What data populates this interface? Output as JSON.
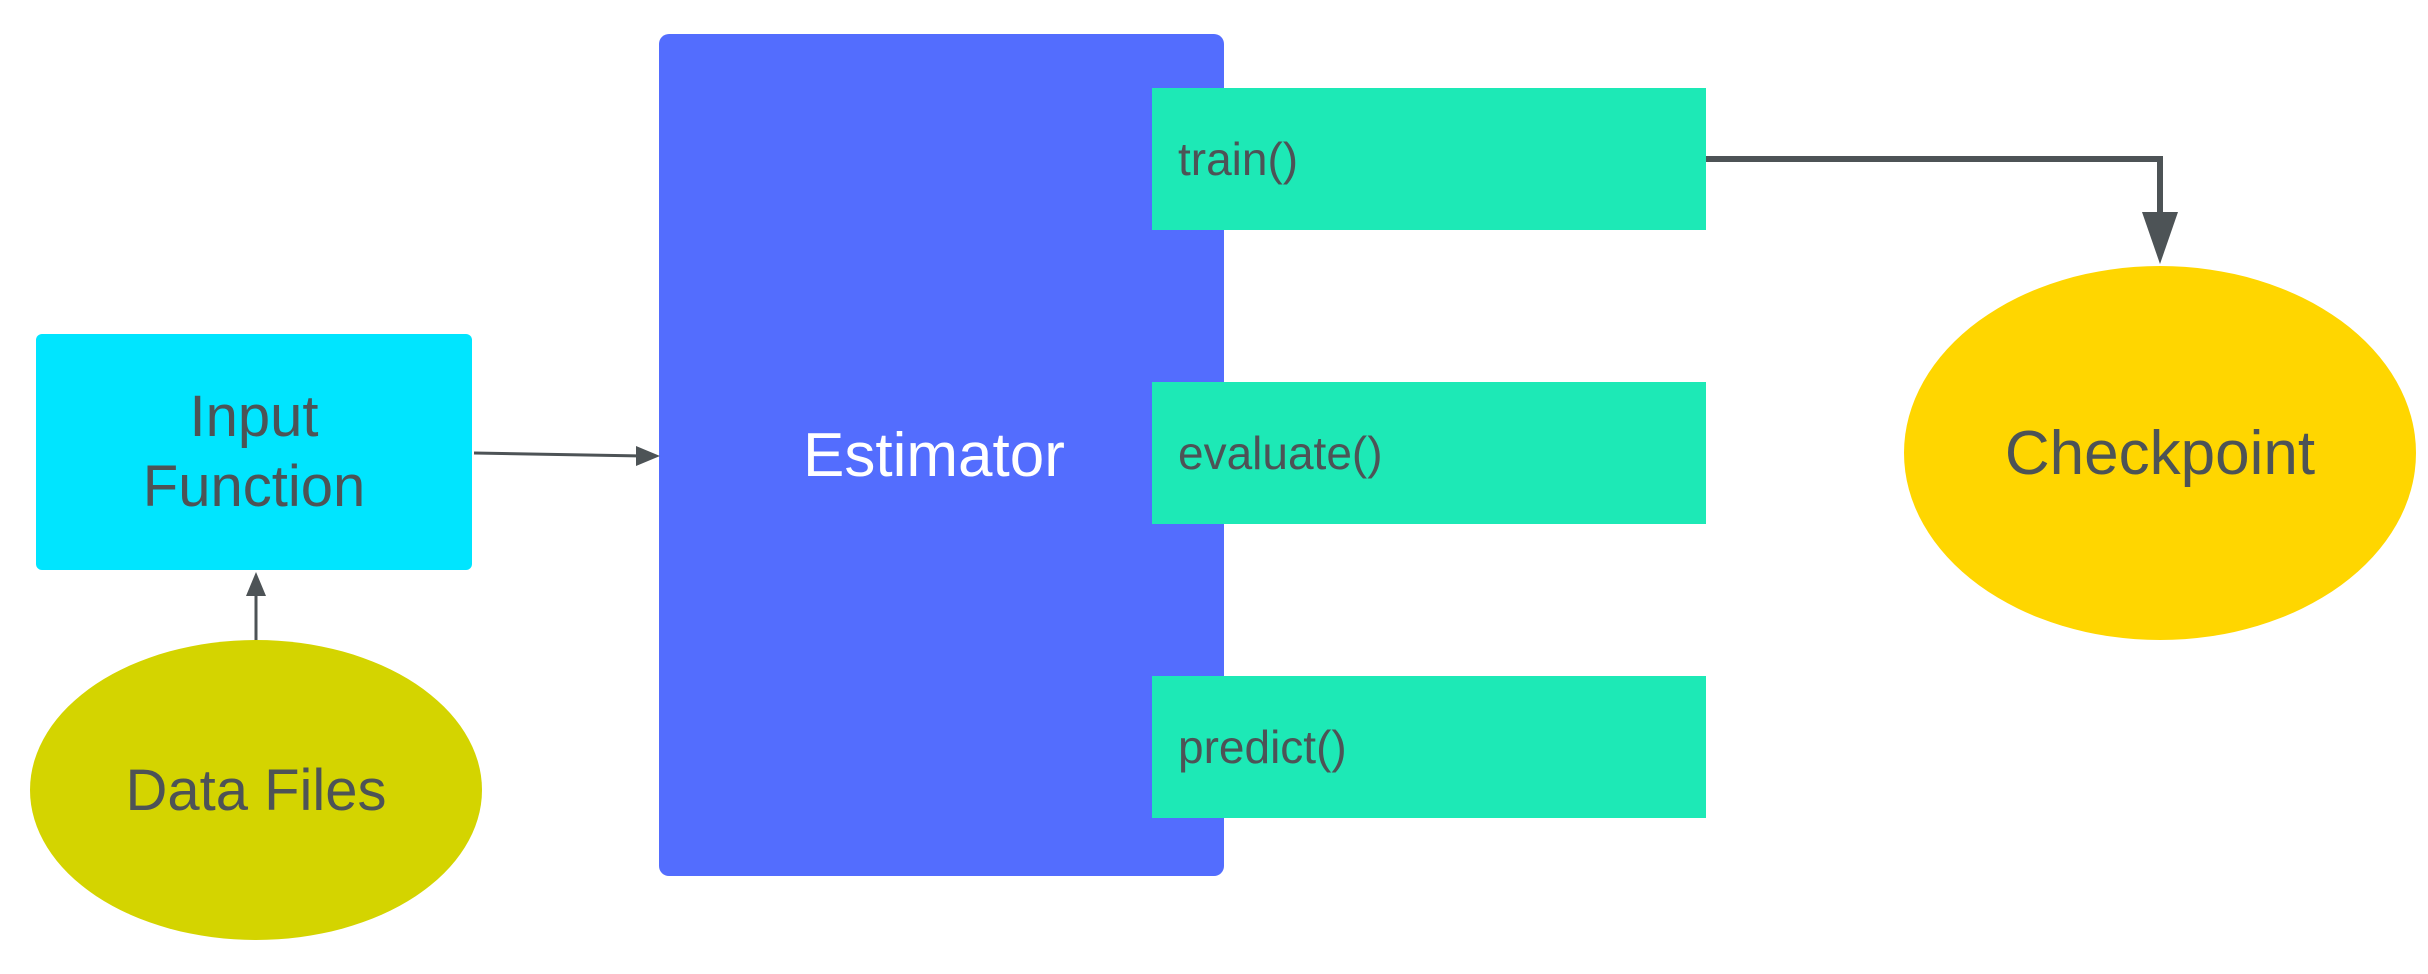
{
  "nodes": {
    "input_function": {
      "label": "Input\nFunction",
      "color": "#00e5ff"
    },
    "data_files": {
      "label": "Data Files",
      "color": "#d4d400"
    },
    "estimator": {
      "label": "Estimator",
      "color": "#536dfe"
    },
    "checkpoint": {
      "label": "Checkpoint",
      "color": "#ffd600"
    }
  },
  "methods": [
    {
      "label": "train()"
    },
    {
      "label": "evaluate()"
    },
    {
      "label": "predict()"
    }
  ],
  "colors": {
    "method_fill": "#1de9b6",
    "connector": "#4d5356",
    "text": "#4d5356"
  }
}
